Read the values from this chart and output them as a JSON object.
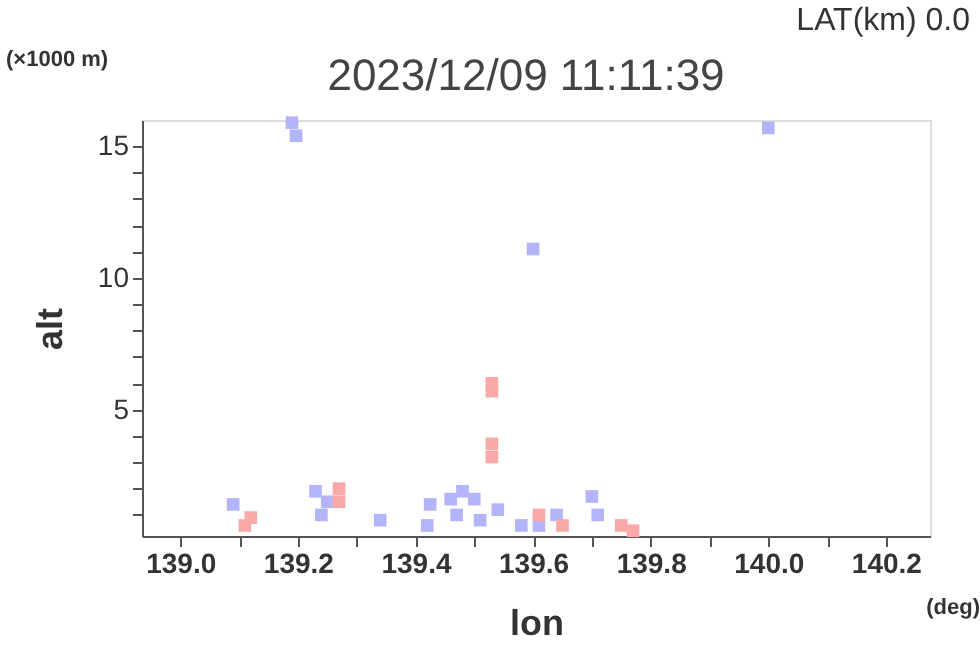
{
  "chart_data": {
    "type": "scatter",
    "title": "2023/12/09 11:11:39",
    "xlabel": "lon",
    "ylabel": "alt",
    "annotations": [
      "LAT(km) 0.0",
      "(×1000 m)",
      "(deg)"
    ],
    "xlim": [
      138.935,
      140.275
    ],
    "xticks": [
      {
        "value": 139.0,
        "label": "139.0"
      },
      {
        "value": 139.1,
        "label": null
      },
      {
        "value": 139.2,
        "label": "139.2"
      },
      {
        "value": 139.3,
        "label": null
      },
      {
        "value": 139.4,
        "label": "139.4"
      },
      {
        "value": 139.5,
        "label": null
      },
      {
        "value": 139.6,
        "label": "139.6"
      },
      {
        "value": 139.7,
        "label": null
      },
      {
        "value": 139.8,
        "label": "139.8"
      },
      {
        "value": 139.9,
        "label": null
      },
      {
        "value": 140.0,
        "label": "140.0"
      },
      {
        "value": 140.1,
        "label": null
      },
      {
        "value": 140.2,
        "label": "140.2"
      }
    ],
    "ylim": [
      0.2,
      16
    ],
    "yticks": [
      {
        "value": 1,
        "label": null
      },
      {
        "value": 2,
        "label": null
      },
      {
        "value": 3,
        "label": null
      },
      {
        "value": 4,
        "label": null
      },
      5,
      {
        "value": 6,
        "label": null
      },
      {
        "value": 7,
        "label": null
      },
      {
        "value": 8,
        "label": null
      },
      {
        "value": 9,
        "label": null
      },
      10,
      {
        "value": 11,
        "label": null
      },
      {
        "value": 12,
        "label": null
      },
      {
        "value": 13,
        "label": null
      },
      {
        "value": 14,
        "label": null
      },
      15
    ],
    "grid": false,
    "legend": false,
    "marker": "square",
    "series": [
      {
        "color": "#b4b4fa",
        "x": [
          139.19,
          139.197,
          140.0,
          139.6,
          139.09,
          139.24,
          139.23,
          139.25,
          139.34,
          139.42,
          139.425,
          139.46,
          139.48,
          139.5,
          139.47,
          139.51,
          139.54,
          139.58,
          139.61,
          139.64,
          139.71,
          139.7
        ],
        "values": [
          15.9,
          15.4,
          15.7,
          11.1,
          1.4,
          1.0,
          1.9,
          1.5,
          0.8,
          0.6,
          1.4,
          1.6,
          1.9,
          1.6,
          1.0,
          0.8,
          1.2,
          0.6,
          0.6,
          1.0,
          1.0,
          1.7
        ]
      },
      {
        "color": "#faa8a8",
        "x": [
          139.11,
          139.12,
          139.27,
          139.27,
          139.53,
          139.53,
          139.53,
          139.53,
          139.61,
          139.65,
          139.75,
          139.77
        ],
        "values": [
          0.6,
          0.9,
          1.5,
          2.0,
          3.2,
          3.7,
          5.7,
          6.0,
          1.0,
          0.6,
          0.6,
          0.4
        ]
      }
    ]
  }
}
